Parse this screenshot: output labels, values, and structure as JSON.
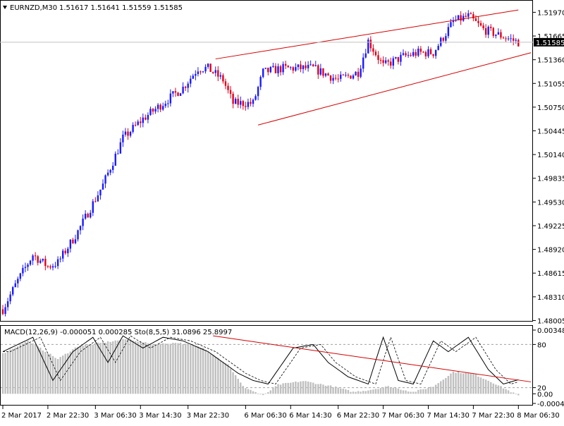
{
  "header": {
    "symbol": "EURNZD,M30",
    "ohlc": "1.51617 1.51641 1.51559 1.51585",
    "menu_icon": "triangle-down-icon"
  },
  "colors": {
    "bull": "#1a1aff",
    "bear": "#e0001a",
    "trendline": "#d40000",
    "macd_hist": "#bfbfbf",
    "signal": "#000000",
    "price_label_bg": "#000000",
    "price_label_text": "#ffffff"
  },
  "chart_data": [
    {
      "type": "candlestick",
      "title": "EURNZD,M30",
      "ylim": [
        1.48,
        1.5211
      ],
      "last_price": 1.51585,
      "last_price_label": "1.51585",
      "y_ticks": [
        "1.51970",
        "1.51665",
        "1.51360",
        "1.51055",
        "1.50750",
        "1.50445",
        "1.50140",
        "1.49835",
        "1.49530",
        "1.49225",
        "1.48920",
        "1.48615",
        "1.48310",
        "1.48005"
      ],
      "anchors": [
        [
          0,
          1.4815
        ],
        [
          6,
          1.4852
        ],
        [
          12,
          1.4885
        ],
        [
          18,
          1.487
        ],
        [
          22,
          1.4875
        ],
        [
          30,
          1.4915
        ],
        [
          40,
          1.4975
        ],
        [
          48,
          1.5035
        ],
        [
          56,
          1.506
        ],
        [
          64,
          1.508
        ],
        [
          72,
          1.51
        ],
        [
          78,
          1.5125
        ],
        [
          82,
          1.5125
        ],
        [
          88,
          1.511
        ],
        [
          92,
          1.508
        ],
        [
          100,
          1.508
        ],
        [
          104,
          1.512
        ],
        [
          112,
          1.5125
        ],
        [
          124,
          1.5125
        ],
        [
          134,
          1.511
        ],
        [
          142,
          1.512
        ],
        [
          146,
          1.516
        ],
        [
          152,
          1.5128
        ],
        [
          160,
          1.514
        ],
        [
          166,
          1.5145
        ],
        [
          172,
          1.5145
        ],
        [
          180,
          1.5185
        ],
        [
          186,
          1.5192
        ],
        [
          192,
          1.5175
        ],
        [
          198,
          1.5168
        ],
        [
          206,
          1.51585
        ]
      ],
      "count": 207,
      "trendlines": [
        {
          "from": [
            85,
            1.5137
          ],
          "to": [
            206,
            1.52
          ]
        },
        {
          "from": [
            102,
            1.5052
          ],
          "to": [
            211,
            1.5145
          ]
        }
      ]
    },
    {
      "type": "indicator",
      "title": "MACD(12,26,9) -0.000051 0.000285  Sto(8,5,5) 31.0896 25.8997",
      "y_tick_top": "0.003484",
      "y_tick_bottom": "-0.000449",
      "y_tick_zero": "0.00",
      "level_80": "80",
      "level_20": "20",
      "macd_ylim": [
        -0.000449,
        0.003484
      ],
      "macd_anchors": [
        [
          0,
          0.0022
        ],
        [
          10,
          0.0029
        ],
        [
          22,
          0.0019
        ],
        [
          30,
          0.0026
        ],
        [
          40,
          0.0028
        ],
        [
          50,
          0.003
        ],
        [
          60,
          0.0027
        ],
        [
          70,
          0.0028
        ],
        [
          80,
          0.0025
        ],
        [
          90,
          0.0016
        ],
        [
          96,
          0.0004
        ],
        [
          104,
          -0.0001
        ],
        [
          110,
          0.0005
        ],
        [
          120,
          0.0007
        ],
        [
          132,
          0.0004
        ],
        [
          140,
          0.0001
        ],
        [
          146,
          0.0002
        ],
        [
          154,
          0.0004
        ],
        [
          164,
          0.0001
        ],
        [
          172,
          0.0004
        ],
        [
          180,
          0.0012
        ],
        [
          188,
          0.0011
        ],
        [
          196,
          0.0006
        ],
        [
          206,
          -0.0001
        ]
      ],
      "stoch_anchors": [
        [
          0,
          70
        ],
        [
          12,
          90
        ],
        [
          20,
          30
        ],
        [
          28,
          70
        ],
        [
          36,
          90
        ],
        [
          42,
          55
        ],
        [
          48,
          92
        ],
        [
          56,
          75
        ],
        [
          64,
          90
        ],
        [
          72,
          85
        ],
        [
          82,
          70
        ],
        [
          94,
          40
        ],
        [
          100,
          30
        ],
        [
          106,
          25
        ],
        [
          116,
          75
        ],
        [
          124,
          80
        ],
        [
          130,
          55
        ],
        [
          138,
          35
        ],
        [
          146,
          25
        ],
        [
          152,
          90
        ],
        [
          158,
          30
        ],
        [
          164,
          25
        ],
        [
          172,
          85
        ],
        [
          178,
          70
        ],
        [
          186,
          90
        ],
        [
          194,
          45
        ],
        [
          200,
          25
        ],
        [
          206,
          31
        ]
      ],
      "trendline": {
        "from": [
          84,
          92
        ],
        "to": [
          211,
          28
        ]
      }
    }
  ],
  "x_axis": {
    "labels": [
      "2 Mar 2017",
      "2 Mar 22:30",
      "3 Mar 06:30",
      "3 Mar 14:30",
      "3 Mar 22:30",
      "6 Mar 06:30",
      "6 Mar 14:30",
      "6 Mar 22:30",
      "7 Mar 06:30",
      "7 Mar 14:30",
      "7 Mar 22:30",
      "8 Mar 06:30"
    ],
    "positions": [
      0,
      18,
      37,
      55,
      74,
      97,
      115,
      134,
      152,
      170,
      188,
      206
    ]
  }
}
